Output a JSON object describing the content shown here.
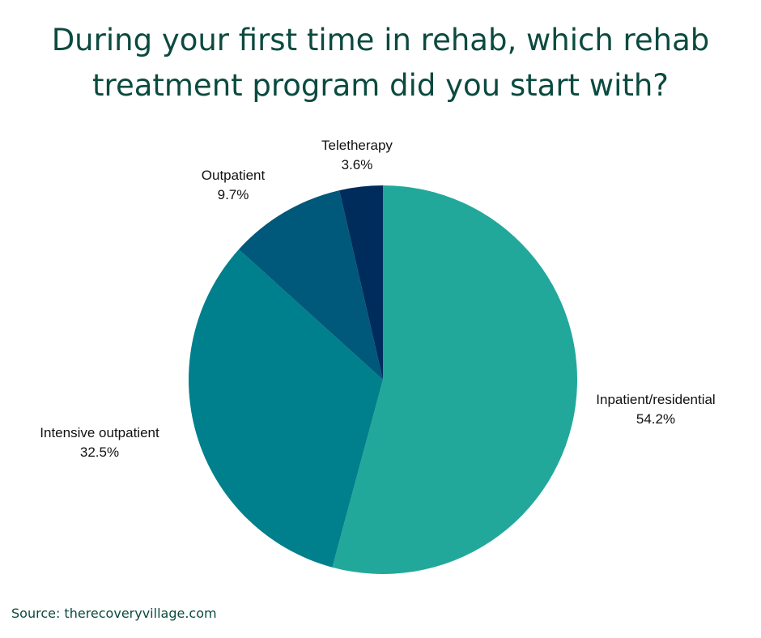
{
  "title_lines": [
    "During your first time in rehab, which rehab",
    "treatment program did you start with?"
  ],
  "source": "Source: therecoveryvillage.com",
  "chart_data": {
    "type": "pie",
    "title": "During your first time in rehab, which rehab treatment program did you start with?",
    "slices": [
      {
        "label": "Inpatient/residential",
        "value": 54.2,
        "display": "54.2%",
        "color": "#21a89b"
      },
      {
        "label": "Intensive outpatient",
        "value": 32.5,
        "display": "32.5%",
        "color": "#00808c"
      },
      {
        "label": "Outpatient",
        "value": 9.7,
        "display": "9.7%",
        "color": "#00587a"
      },
      {
        "label": "Teletherapy",
        "value": 3.6,
        "display": "3.6%",
        "color": "#002c5c"
      }
    ],
    "start_angle": "12 o'clock",
    "direction": "clockwise",
    "legend": "none"
  }
}
